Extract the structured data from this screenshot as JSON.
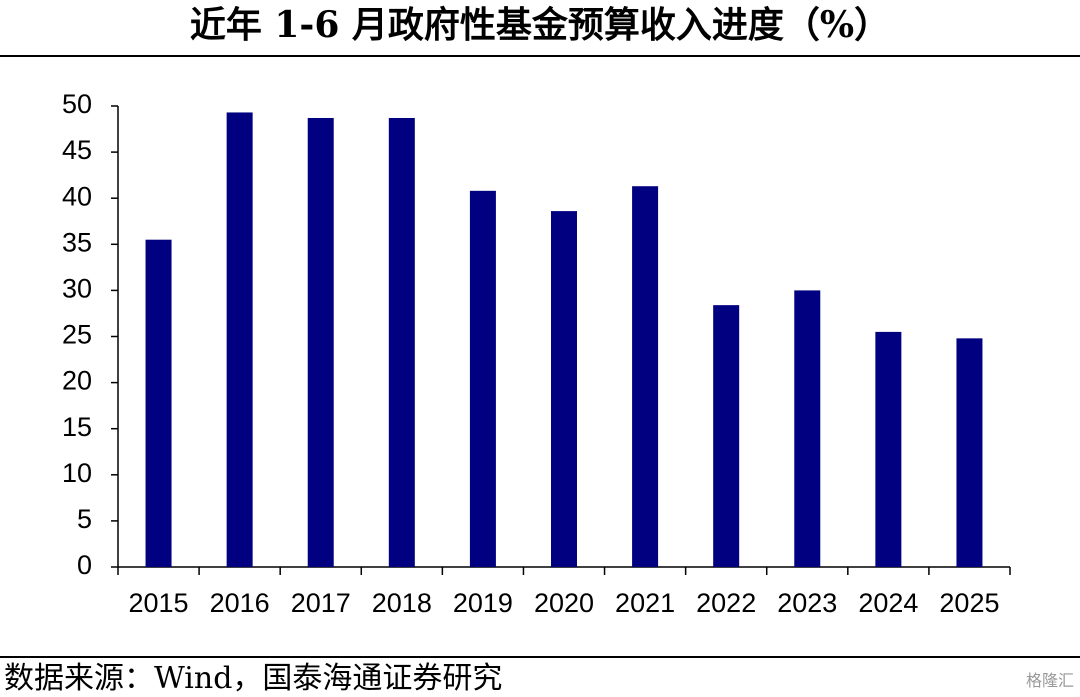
{
  "chart_data": {
    "type": "bar",
    "title": "近年 1-6 月政府性基金预算收入进度（%）",
    "source": "数据来源：Wind，国泰海通证券研究",
    "watermark": "格隆汇",
    "categories": [
      "2015",
      "2016",
      "2017",
      "2018",
      "2019",
      "2020",
      "2021",
      "2022",
      "2023",
      "2024",
      "2025"
    ],
    "values": [
      35.5,
      49.3,
      48.7,
      48.7,
      40.8,
      38.6,
      41.3,
      28.4,
      30.0,
      25.5,
      24.8
    ],
    "color": "#000080",
    "ylim": [
      0,
      50
    ],
    "yticks": [
      0,
      5,
      10,
      15,
      20,
      25,
      30,
      35,
      40,
      45,
      50
    ],
    "grid": false
  }
}
